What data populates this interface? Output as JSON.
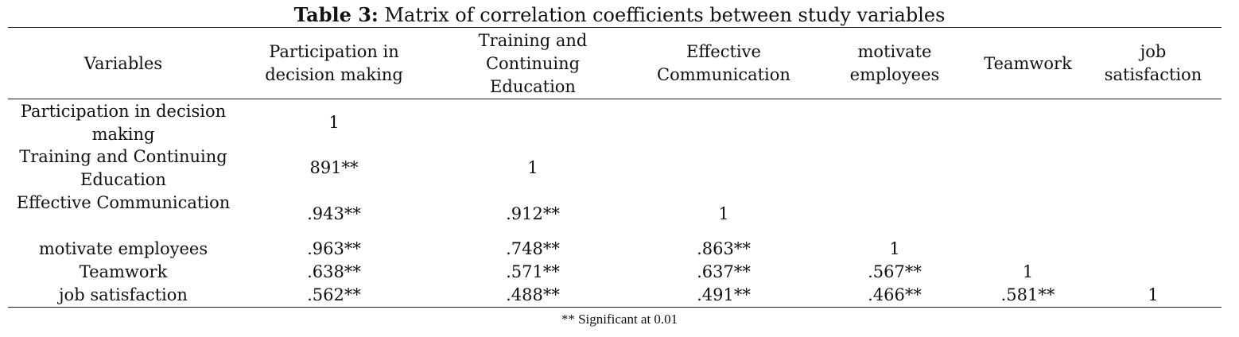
{
  "table": {
    "caption_label": "Table 3:",
    "caption_text": "Matrix of correlation coefficients between study variables",
    "headers": [
      "Variables",
      "Participation in decision making",
      "Training and Continuing Education",
      "Effective Communication",
      "motivate employees",
      "Teamwork",
      "job satisfaction"
    ],
    "rows": [
      {
        "label": "Participation in decision making",
        "cells": [
          "1",
          "",
          "",
          "",
          "",
          ""
        ]
      },
      {
        "label": "Training and Continuing Education",
        "cells": [
          "891**",
          "1",
          "",
          "",
          "",
          ""
        ]
      },
      {
        "label": "Effective Communication",
        "cells": [
          ".943**",
          ".912**",
          "1",
          "",
          "",
          ""
        ]
      },
      {
        "label": "motivate employees",
        "cells": [
          ".963**",
          ".748**",
          ".863**",
          "1",
          "",
          ""
        ]
      },
      {
        "label": "Teamwork",
        "cells": [
          ".638**",
          ".571**",
          ".637**",
          ".567**",
          "1",
          ""
        ]
      },
      {
        "label": "job satisfaction",
        "cells": [
          ".562**",
          ".488**",
          ".491**",
          ".466**",
          ".581**",
          "1"
        ]
      }
    ],
    "footnote": "** Significant at 0.01"
  }
}
